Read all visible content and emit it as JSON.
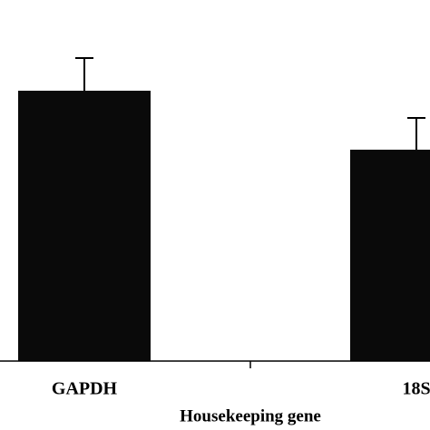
{
  "chart_data": {
    "type": "bar",
    "x_label": "Housekeeping gene",
    "categories": [
      "GAPDH",
      "18S"
    ],
    "values": [
      298,
      233
    ],
    "errors": [
      36,
      35
    ],
    "color": "#0a0a0a",
    "ylim": [
      0,
      398
    ]
  }
}
